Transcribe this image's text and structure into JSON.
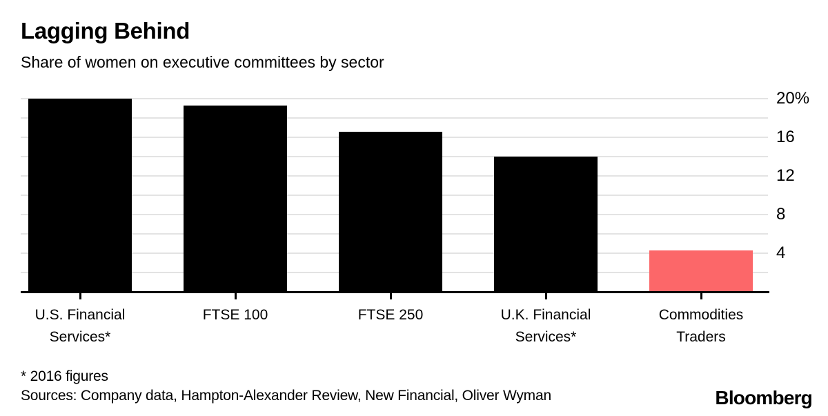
{
  "chart_data": {
    "type": "bar",
    "title": "Lagging Behind",
    "subtitle": "Share of women on executive committees by sector",
    "categories": [
      "U.S. Financial Services*",
      "FTSE 100",
      "FTSE 250",
      "U.K. Financial Services*",
      "Commodities Traders"
    ],
    "category_lines": [
      [
        "U.S. Financial",
        "Services*"
      ],
      [
        "FTSE 100"
      ],
      [
        "FTSE 250"
      ],
      [
        "U.K. Financial",
        "Services*"
      ],
      [
        "Commodities",
        "Traders"
      ]
    ],
    "values": [
      20,
      19.3,
      16.6,
      14,
      4.3
    ],
    "unit": "%",
    "bar_colors": [
      "#000000",
      "#000000",
      "#000000",
      "#000000",
      "#fc6769"
    ],
    "bar_default_color": "#000000",
    "highlight_color": "#fc6769",
    "yticks": [
      20,
      16,
      12,
      8,
      4
    ],
    "yticklabels": [
      "20%",
      "16",
      "12",
      "8",
      "4"
    ],
    "ylim": [
      0,
      20
    ],
    "gridline_step": 2,
    "grid": "horizontal",
    "gridline_color": "#e3e3e3",
    "axis_color": "#000000",
    "legend": "none",
    "xlabel": "",
    "ylabel": ""
  },
  "footnotes": {
    "note": "* 2016 figures",
    "sources": "Sources: Company data, Hampton-Alexander Review, New Financial, Oliver Wyman"
  },
  "branding": {
    "logo": "Bloomberg"
  }
}
